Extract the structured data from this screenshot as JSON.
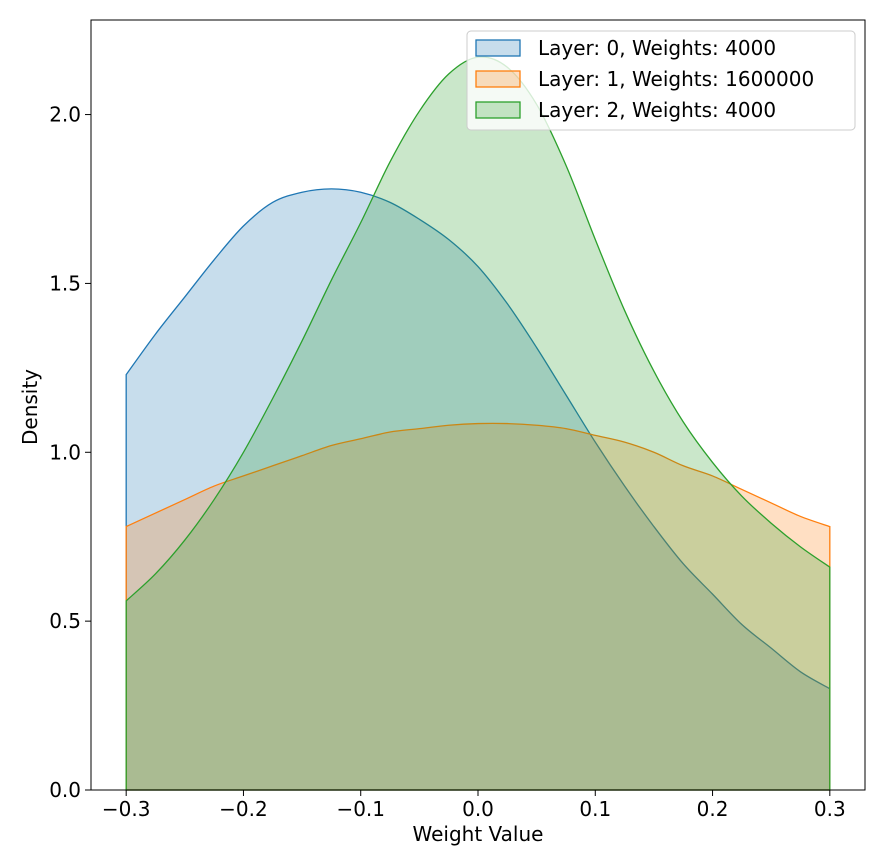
{
  "chart_data": {
    "type": "area",
    "xlabel": "Weight Value",
    "ylabel": "Density",
    "xlim": [
      -0.33,
      0.33
    ],
    "ylim": [
      0,
      2.28
    ],
    "xticks": [
      -0.3,
      -0.2,
      -0.1,
      0.0,
      0.1,
      0.2,
      0.3
    ],
    "xtick_labels": [
      "−0.3",
      "−0.2",
      "−0.1",
      "0.0",
      "0.1",
      "0.2",
      "0.3"
    ],
    "yticks": [
      0.0,
      0.5,
      1.0,
      1.5,
      2.0
    ],
    "ytick_labels": [
      "0.0",
      "0.5",
      "1.0",
      "1.5",
      "2.0"
    ],
    "grid": false,
    "legend_position": "top-right",
    "series": [
      {
        "name": "Layer: 0, Weights: 4000",
        "color": "#1f77b4",
        "x": [
          -0.3,
          -0.275,
          -0.25,
          -0.225,
          -0.2,
          -0.175,
          -0.15,
          -0.125,
          -0.1,
          -0.075,
          -0.05,
          -0.025,
          0.0,
          0.025,
          0.05,
          0.075,
          0.1,
          0.125,
          0.15,
          0.175,
          0.2,
          0.225,
          0.25,
          0.275,
          0.3
        ],
        "y": [
          1.23,
          1.35,
          1.46,
          1.57,
          1.67,
          1.74,
          1.77,
          1.78,
          1.77,
          1.74,
          1.69,
          1.63,
          1.55,
          1.44,
          1.31,
          1.17,
          1.03,
          0.9,
          0.78,
          0.67,
          0.58,
          0.49,
          0.42,
          0.35,
          0.3
        ]
      },
      {
        "name": "Layer: 1, Weights: 1600000",
        "color": "#ff7f0e",
        "x": [
          -0.3,
          -0.275,
          -0.25,
          -0.225,
          -0.2,
          -0.175,
          -0.15,
          -0.125,
          -0.1,
          -0.075,
          -0.05,
          -0.025,
          0.0,
          0.025,
          0.05,
          0.075,
          0.1,
          0.125,
          0.15,
          0.175,
          0.2,
          0.225,
          0.25,
          0.275,
          0.3
        ],
        "y": [
          0.78,
          0.82,
          0.86,
          0.9,
          0.93,
          0.96,
          0.99,
          1.02,
          1.04,
          1.06,
          1.07,
          1.08,
          1.085,
          1.085,
          1.08,
          1.07,
          1.05,
          1.03,
          1.0,
          0.96,
          0.93,
          0.89,
          0.85,
          0.81,
          0.78
        ]
      },
      {
        "name": "Layer: 2, Weights: 4000",
        "color": "#2ca02c",
        "x": [
          -0.3,
          -0.275,
          -0.25,
          -0.225,
          -0.2,
          -0.175,
          -0.15,
          -0.125,
          -0.1,
          -0.075,
          -0.05,
          -0.025,
          0.0,
          0.025,
          0.05,
          0.075,
          0.1,
          0.125,
          0.15,
          0.175,
          0.2,
          0.225,
          0.25,
          0.275,
          0.3
        ],
        "y": [
          0.56,
          0.64,
          0.74,
          0.86,
          1.0,
          1.16,
          1.33,
          1.51,
          1.68,
          1.86,
          2.01,
          2.12,
          2.17,
          2.14,
          2.03,
          1.85,
          1.63,
          1.42,
          1.24,
          1.09,
          0.97,
          0.87,
          0.79,
          0.72,
          0.66
        ]
      }
    ]
  }
}
